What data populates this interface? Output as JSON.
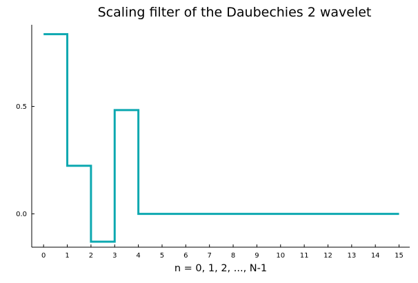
{
  "chart_data": {
    "type": "line",
    "step": "post",
    "title": "Scaling filter of the Daubechies 2 wavelet",
    "xlabel": "n = 0, 1, 2, ..., N-1",
    "ylabel": "",
    "xlim": [
      -0.5,
      15.45
    ],
    "ylim": [
      -0.155,
      0.88
    ],
    "xticks": [
      0,
      1,
      2,
      3,
      4,
      5,
      6,
      7,
      8,
      9,
      10,
      11,
      12,
      13,
      14,
      15
    ],
    "xtick_labels": [
      "0",
      "1",
      "2",
      "3",
      "4",
      "5",
      "6",
      "7",
      "8",
      "9",
      "10",
      "11",
      "12",
      "13",
      "14",
      "15"
    ],
    "yticks": [
      0,
      0.5
    ],
    "ytick_labels": [
      "0.0",
      "0.5"
    ],
    "grid": false,
    "legend": "none",
    "series": [
      {
        "color": "#0ca8b0",
        "x": [
          0,
          1,
          2,
          3,
          4,
          5,
          6,
          7,
          8,
          9,
          10,
          11,
          12,
          13,
          14,
          15
        ],
        "y": [
          0.8365,
          0.2241,
          -0.1294,
          0.483,
          0,
          0,
          0,
          0,
          0,
          0,
          0,
          0,
          0,
          0,
          0,
          0
        ]
      }
    ]
  }
}
